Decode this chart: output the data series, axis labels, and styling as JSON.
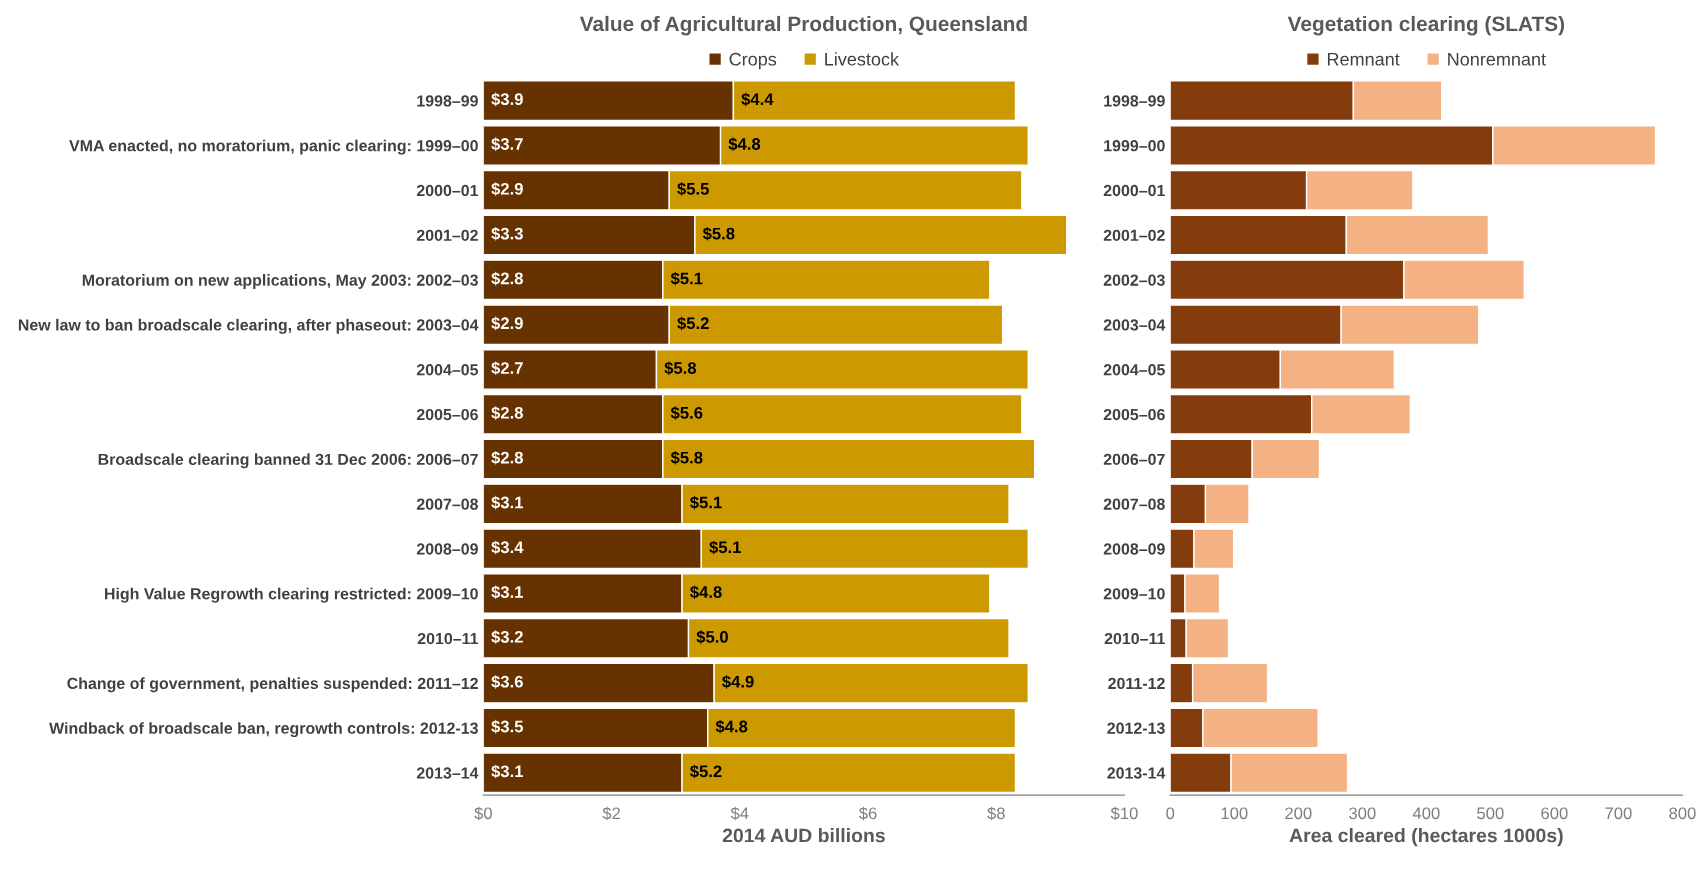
{
  "chart_data": [
    {
      "type": "bar",
      "orientation": "horizontal",
      "stacked": true,
      "title": "Value of Agricultural Production, Queensland",
      "xlabel": "2014 AUD billions",
      "categories": [
        "1998–99",
        "VMA enacted, no moratorium, panic clearing: 1999–00",
        "2000–01",
        "2001–02",
        "Moratorium on new applications, May 2003: 2002–03",
        "New law to ban broadscale clearing, after phaseout: 2003–04",
        "2004–05",
        "2005–06",
        "Broadscale clearing banned 31 Dec 2006: 2006–07",
        "2007–08",
        "2008–09",
        "High Value Regrowth clearing restricted: 2009–10",
        "2010–11",
        "Change of government, penalties suspended: 2011–12",
        "Windback of broadscale ban, regrowth controls: 2012-13",
        "2013–14"
      ],
      "series": [
        {
          "name": "Crops",
          "color": "#663300",
          "values": [
            3.9,
            3.7,
            2.9,
            3.3,
            2.8,
            2.9,
            2.7,
            2.8,
            2.8,
            3.1,
            3.4,
            3.1,
            3.2,
            3.6,
            3.5,
            3.1
          ],
          "value_labels": [
            "$3.9",
            "$3.7",
            "$2.9",
            "$3.3",
            "$2.8",
            "$2.9",
            "$2.7",
            "$2.8",
            "$2.8",
            "$3.1",
            "$3.4",
            "$3.1",
            "$3.2",
            "$3.6",
            "$3.5",
            "$3.1"
          ]
        },
        {
          "name": "Livestock",
          "color": "#cc9900",
          "values": [
            4.4,
            4.8,
            5.5,
            5.8,
            5.1,
            5.2,
            5.8,
            5.6,
            5.8,
            5.1,
            5.1,
            4.8,
            5.0,
            4.9,
            4.8,
            5.2
          ],
          "value_labels": [
            "$4.4",
            "$4.8",
            "$5.5",
            "$5.8",
            "$5.1",
            "$5.2",
            "$5.8",
            "$5.6",
            "$5.8",
            "$5.1",
            "$5.1",
            "$4.8",
            "$5.0",
            "$4.9",
            "$4.8",
            "$5.2"
          ]
        }
      ],
      "xlim": [
        0,
        10
      ],
      "xticks": [
        {
          "value": 0,
          "label": "$0"
        },
        {
          "value": 2,
          "label": "$2"
        },
        {
          "value": 4,
          "label": "$4"
        },
        {
          "value": 6,
          "label": "$6"
        },
        {
          "value": 8,
          "label": "$8"
        },
        {
          "value": 10,
          "label": "$10"
        }
      ],
      "legend": "top",
      "grid": false
    },
    {
      "type": "bar",
      "orientation": "horizontal",
      "stacked": true,
      "title": "Vegetation clearing (SLATS)",
      "xlabel": "Area cleared (hectares 1000s)",
      "categories": [
        "1998–99",
        "1999–00",
        "2000–01",
        "2001–02",
        "2002–03",
        "2003–04",
        "2004–05",
        "2005–06",
        "2006–07",
        "2007–08",
        "2008–09",
        "2009–10",
        "2010–11",
        "2011-12",
        "2012-13",
        "2013-14"
      ],
      "series": [
        {
          "name": "Remnant",
          "color": "#843c0c",
          "values": [
            286,
            504,
            213,
            275,
            365,
            267,
            172,
            221,
            128,
            55,
            37,
            23,
            25,
            35,
            51,
            95
          ]
        },
        {
          "name": "Nonremnant",
          "color": "#f4b183",
          "values": [
            138,
            254,
            166,
            222,
            188,
            215,
            178,
            154,
            105,
            68,
            62,
            54,
            66,
            117,
            180,
            182
          ]
        }
      ],
      "xlim": [
        0,
        800
      ],
      "xticks": [
        0,
        100,
        200,
        300,
        400,
        500,
        600,
        700,
        800
      ],
      "legend": "top",
      "grid": false
    }
  ]
}
